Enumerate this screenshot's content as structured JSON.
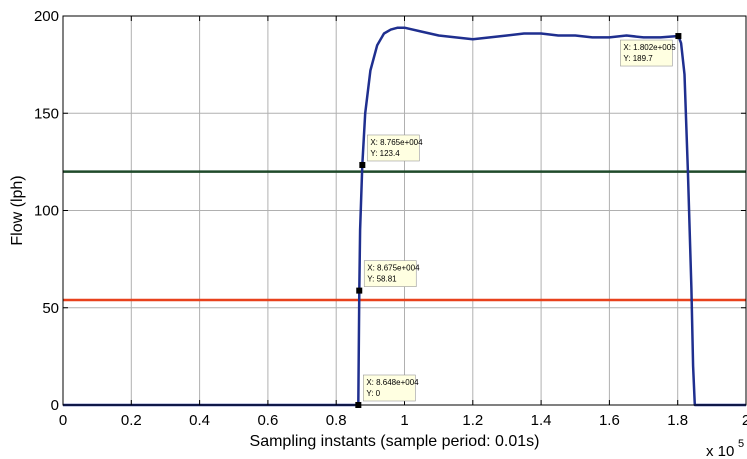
{
  "chart_data": {
    "type": "line",
    "title": "",
    "xlabel": "Sampling instants (sample period: 0.01s)",
    "ylabel": "Flow (lph)",
    "x_multiplier_base": "x 10",
    "x_multiplier_exp": "5",
    "xlim": [
      0,
      2
    ],
    "ylim": [
      0,
      200
    ],
    "x_ticks": [
      {
        "value": 0,
        "label": "0"
      },
      {
        "value": 0.2,
        "label": "0.2"
      },
      {
        "value": 0.4,
        "label": "0.4"
      },
      {
        "value": 0.6,
        "label": "0.6"
      },
      {
        "value": 0.8,
        "label": "0.8"
      },
      {
        "value": 1.0,
        "label": "1"
      },
      {
        "value": 1.2,
        "label": "1.2"
      },
      {
        "value": 1.4,
        "label": "1.4"
      },
      {
        "value": 1.6,
        "label": "1.6"
      },
      {
        "value": 1.8,
        "label": "1.8"
      },
      {
        "value": 2.0,
        "label": "2"
      }
    ],
    "y_ticks": [
      {
        "value": 0,
        "label": "0"
      },
      {
        "value": 50,
        "label": "50"
      },
      {
        "value": 100,
        "label": "100"
      },
      {
        "value": 150,
        "label": "150"
      },
      {
        "value": 200,
        "label": "200"
      }
    ],
    "grid": true,
    "series": [
      {
        "color": "#1f2f8f",
        "x": [
          0,
          0.8648,
          0.8675,
          0.87,
          0.8765,
          0.885,
          0.9,
          0.92,
          0.94,
          0.96,
          0.98,
          1.0,
          1.05,
          1.1,
          1.15,
          1.2,
          1.25,
          1.3,
          1.35,
          1.4,
          1.45,
          1.5,
          1.55,
          1.6,
          1.65,
          1.7,
          1.75,
          1.802,
          1.81,
          1.82,
          1.83,
          1.84,
          1.845,
          1.85,
          2.0
        ],
        "y": [
          0,
          0,
          58.81,
          90,
          123.4,
          150,
          172,
          185,
          191,
          193,
          194,
          194,
          192,
          190,
          189,
          188,
          189,
          190,
          191,
          191,
          190,
          190,
          189,
          189,
          190,
          189,
          189,
          189.7,
          186,
          170,
          120,
          60,
          20,
          0,
          0
        ]
      }
    ],
    "reference_lines": [
      {
        "y": 120,
        "color": "#1f4a2a"
      },
      {
        "y": 54,
        "color": "#e8411c"
      }
    ],
    "datatips": [
      {
        "x": 0.8648,
        "y": 0,
        "x_text": "X: 8.648e+004",
        "y_text": "Y: 0"
      },
      {
        "x": 0.8675,
        "y": 58.81,
        "x_text": "X: 8.675e+004",
        "y_text": "Y: 58.81"
      },
      {
        "x": 0.8765,
        "y": 123.4,
        "x_text": "X: 8.765e+004",
        "y_text": "Y: 123.4"
      },
      {
        "x": 1.802,
        "y": 189.7,
        "x_text": "X: 1.802e+005",
        "y_text": "Y: 189.7"
      }
    ],
    "colors": {
      "tip_background": "#ffffe1",
      "grid": "#b0b0b0",
      "axes": "#000000"
    }
  }
}
